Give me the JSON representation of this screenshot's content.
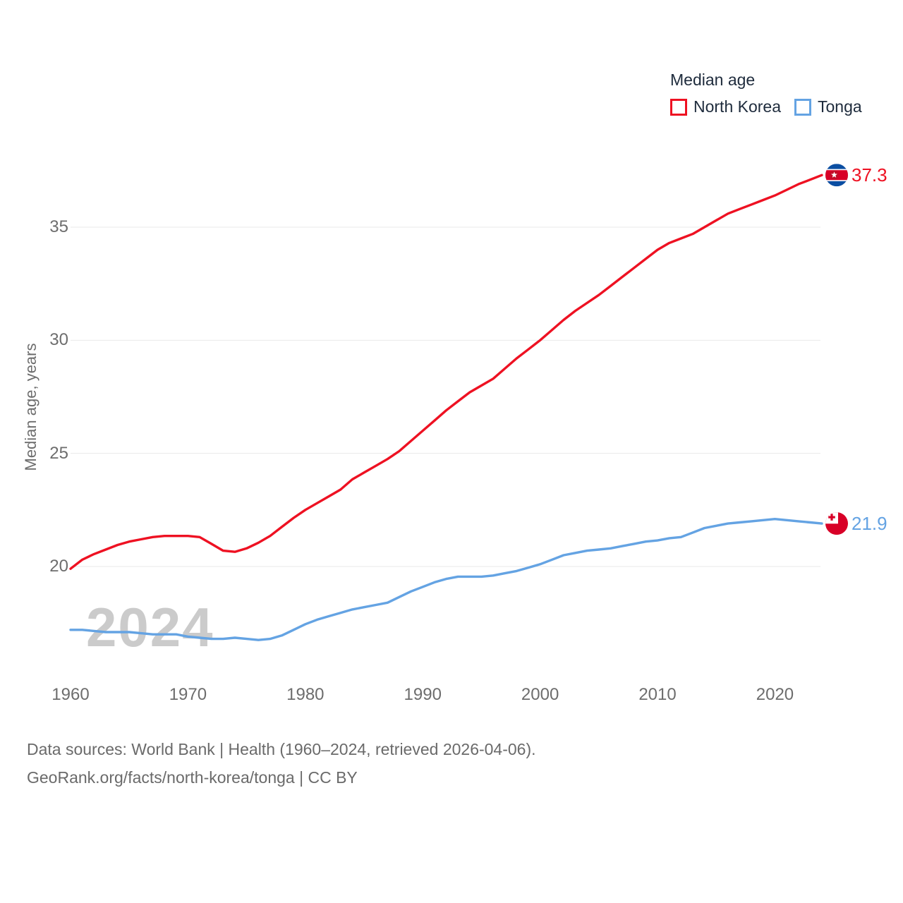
{
  "legend": {
    "title": "Median age",
    "items": [
      {
        "label": "North Korea",
        "color": "#ee1122"
      },
      {
        "label": "Tonga",
        "color": "#64a3e3"
      }
    ]
  },
  "yaxis": {
    "label": "Median age, years"
  },
  "watermark": "2024",
  "footer": {
    "line1": "Data sources: World Bank | Health (1960–2024, retrieved 2026-04-06).",
    "line2": "GeoRank.org/facts/north-korea/tonga | CC BY"
  },
  "chart_data": {
    "type": "line",
    "title": "Median age",
    "ylabel": "Median age, years",
    "xlabel": "",
    "grid": "horizontal",
    "legend_position": "top-right",
    "ylim": [
      16.0,
      38.5
    ],
    "xlim": [
      1960,
      2024
    ],
    "yticks": [
      20,
      25,
      30,
      35
    ],
    "xticks": [
      1960,
      1970,
      1980,
      1990,
      2000,
      2010,
      2020
    ],
    "years": [
      1960,
      1961,
      1962,
      1963,
      1964,
      1965,
      1966,
      1967,
      1968,
      1969,
      1970,
      1971,
      1972,
      1973,
      1974,
      1975,
      1976,
      1977,
      1978,
      1979,
      1980,
      1981,
      1982,
      1983,
      1984,
      1985,
      1986,
      1987,
      1988,
      1989,
      1990,
      1991,
      1992,
      1993,
      1994,
      1995,
      1996,
      1997,
      1998,
      1999,
      2000,
      2001,
      2002,
      2003,
      2004,
      2005,
      2006,
      2007,
      2008,
      2009,
      2010,
      2011,
      2012,
      2013,
      2014,
      2015,
      2016,
      2017,
      2018,
      2019,
      2020,
      2021,
      2022,
      2023,
      2024
    ],
    "series": [
      {
        "name": "North Korea",
        "color": "#ee1122",
        "flag": "north-korea",
        "end_label": "37.3",
        "values": [
          19.9,
          20.3,
          20.55,
          20.75,
          20.95,
          21.1,
          21.2,
          21.3,
          21.35,
          21.35,
          21.35,
          21.3,
          21.0,
          20.7,
          20.65,
          20.8,
          21.05,
          21.35,
          21.75,
          22.15,
          22.5,
          22.8,
          23.1,
          23.4,
          23.85,
          24.15,
          24.45,
          24.75,
          25.1,
          25.55,
          26.0,
          26.45,
          26.9,
          27.3,
          27.7,
          28.0,
          28.3,
          28.75,
          29.2,
          29.6,
          30.0,
          30.45,
          30.9,
          31.3,
          31.65,
          32.0,
          32.4,
          32.8,
          33.2,
          33.6,
          34.0,
          34.3,
          34.5,
          34.7,
          35.0,
          35.3,
          35.6,
          35.8,
          36.0,
          36.2,
          36.4,
          36.65,
          36.9,
          37.1,
          37.3
        ]
      },
      {
        "name": "Tonga",
        "color": "#64a3e3",
        "flag": "tonga",
        "end_label": "21.9",
        "values": [
          17.2,
          17.2,
          17.15,
          17.1,
          17.1,
          17.1,
          17.05,
          17.0,
          17.0,
          17.0,
          16.9,
          16.85,
          16.8,
          16.8,
          16.85,
          16.8,
          16.75,
          16.8,
          16.95,
          17.2,
          17.45,
          17.65,
          17.8,
          17.95,
          18.1,
          18.2,
          18.3,
          18.4,
          18.65,
          18.9,
          19.1,
          19.3,
          19.45,
          19.55,
          19.55,
          19.55,
          19.6,
          19.7,
          19.8,
          19.95,
          20.1,
          20.3,
          20.5,
          20.6,
          20.7,
          20.75,
          20.8,
          20.9,
          21.0,
          21.1,
          21.15,
          21.25,
          21.3,
          21.5,
          21.7,
          21.8,
          21.9,
          21.95,
          22.0,
          22.05,
          22.1,
          22.05,
          22.0,
          21.95,
          21.9
        ]
      }
    ]
  }
}
